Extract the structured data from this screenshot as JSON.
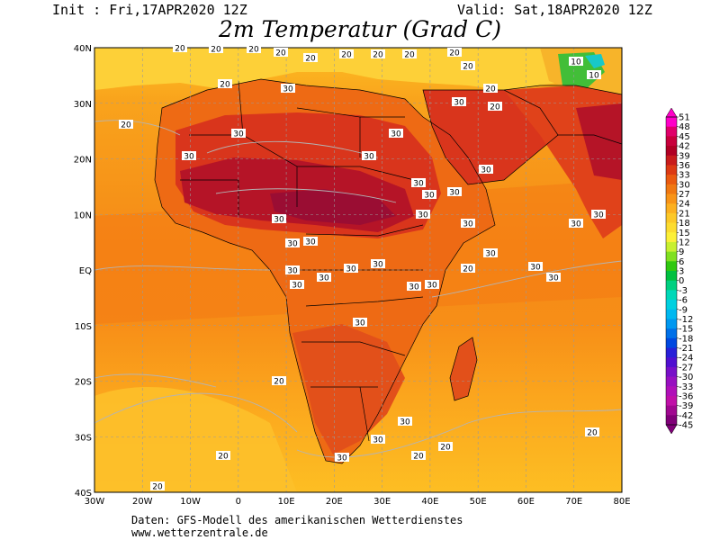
{
  "header": {
    "init": "Init : Fri,17APR2020 12Z",
    "valid": "Valid: Sat,18APR2020 12Z",
    "title": "2m Temperatur (Grad C)"
  },
  "map": {
    "lon_labels": [
      "30W",
      "20W",
      "10W",
      "0",
      "10E",
      "20E",
      "30E",
      "40E",
      "50E",
      "60E",
      "70E",
      "80E"
    ],
    "lat_labels": [
      "40N",
      "30N",
      "20N",
      "10N",
      "EQ",
      "10S",
      "20S",
      "30S",
      "40S"
    ],
    "gridlines": true,
    "colors": {
      "ocean_cool": "#fdbe23",
      "ocean_mid": "#fb9a1a",
      "ocean_warm": "#f57a12",
      "land_warm": "#ee6a14",
      "land_hot": "#d9351c",
      "land_very_hot": "#b51427",
      "land_extreme": "#9a0d33",
      "mediterranean": "#fdd035",
      "boundary": "#000000",
      "isotherm": "#aaaaaa"
    },
    "isotherm_labels": [
      "20",
      "20",
      "20",
      "20",
      "20",
      "20",
      "20",
      "20",
      "20",
      "20",
      "20",
      "20",
      "20",
      "20",
      "30",
      "30",
      "30",
      "30",
      "30",
      "30",
      "30",
      "30",
      "30",
      "30",
      "30",
      "30",
      "30",
      "30",
      "30",
      "30",
      "30",
      "30",
      "30",
      "30",
      "30",
      "30",
      "30",
      "30",
      "30",
      "30",
      "30",
      "30",
      "20",
      "20",
      "20",
      "20",
      "20",
      "10",
      "10",
      "20",
      "30",
      "30",
      "30",
      "20"
    ]
  },
  "colorbar": {
    "labels": [
      "51",
      "48",
      "45",
      "42",
      "39",
      "36",
      "33",
      "30",
      "27",
      "24",
      "21",
      "18",
      "15",
      "12",
      "9",
      "6",
      "3",
      "0",
      "-3",
      "-6",
      "-9",
      "-12",
      "-15",
      "-18",
      "-21",
      "-24",
      "-27",
      "-30",
      "-33",
      "-36",
      "-39",
      "-42",
      "-45"
    ],
    "colors": [
      "#ff00c8",
      "#e0006a",
      "#c8003c",
      "#b00024",
      "#c81c1c",
      "#dc3a14",
      "#ea5a10",
      "#f07812",
      "#f89418",
      "#fcb020",
      "#fcc828",
      "#fcdc30",
      "#fcf038",
      "#c8f030",
      "#80e020",
      "#30c810",
      "#00c040",
      "#00d080",
      "#00d8b8",
      "#00d0e0",
      "#00b8f0",
      "#0098f0",
      "#0070e8",
      "#0048e0",
      "#2820d8",
      "#5010d0",
      "#7810c8",
      "#9810c0",
      "#b010b8",
      "#c010a8",
      "#a00890",
      "#800078"
    ]
  },
  "footer": {
    "source": "Daten: GFS-Modell des amerikanischen Wetterdienstes",
    "url": "www.wetterzentrale.de"
  }
}
